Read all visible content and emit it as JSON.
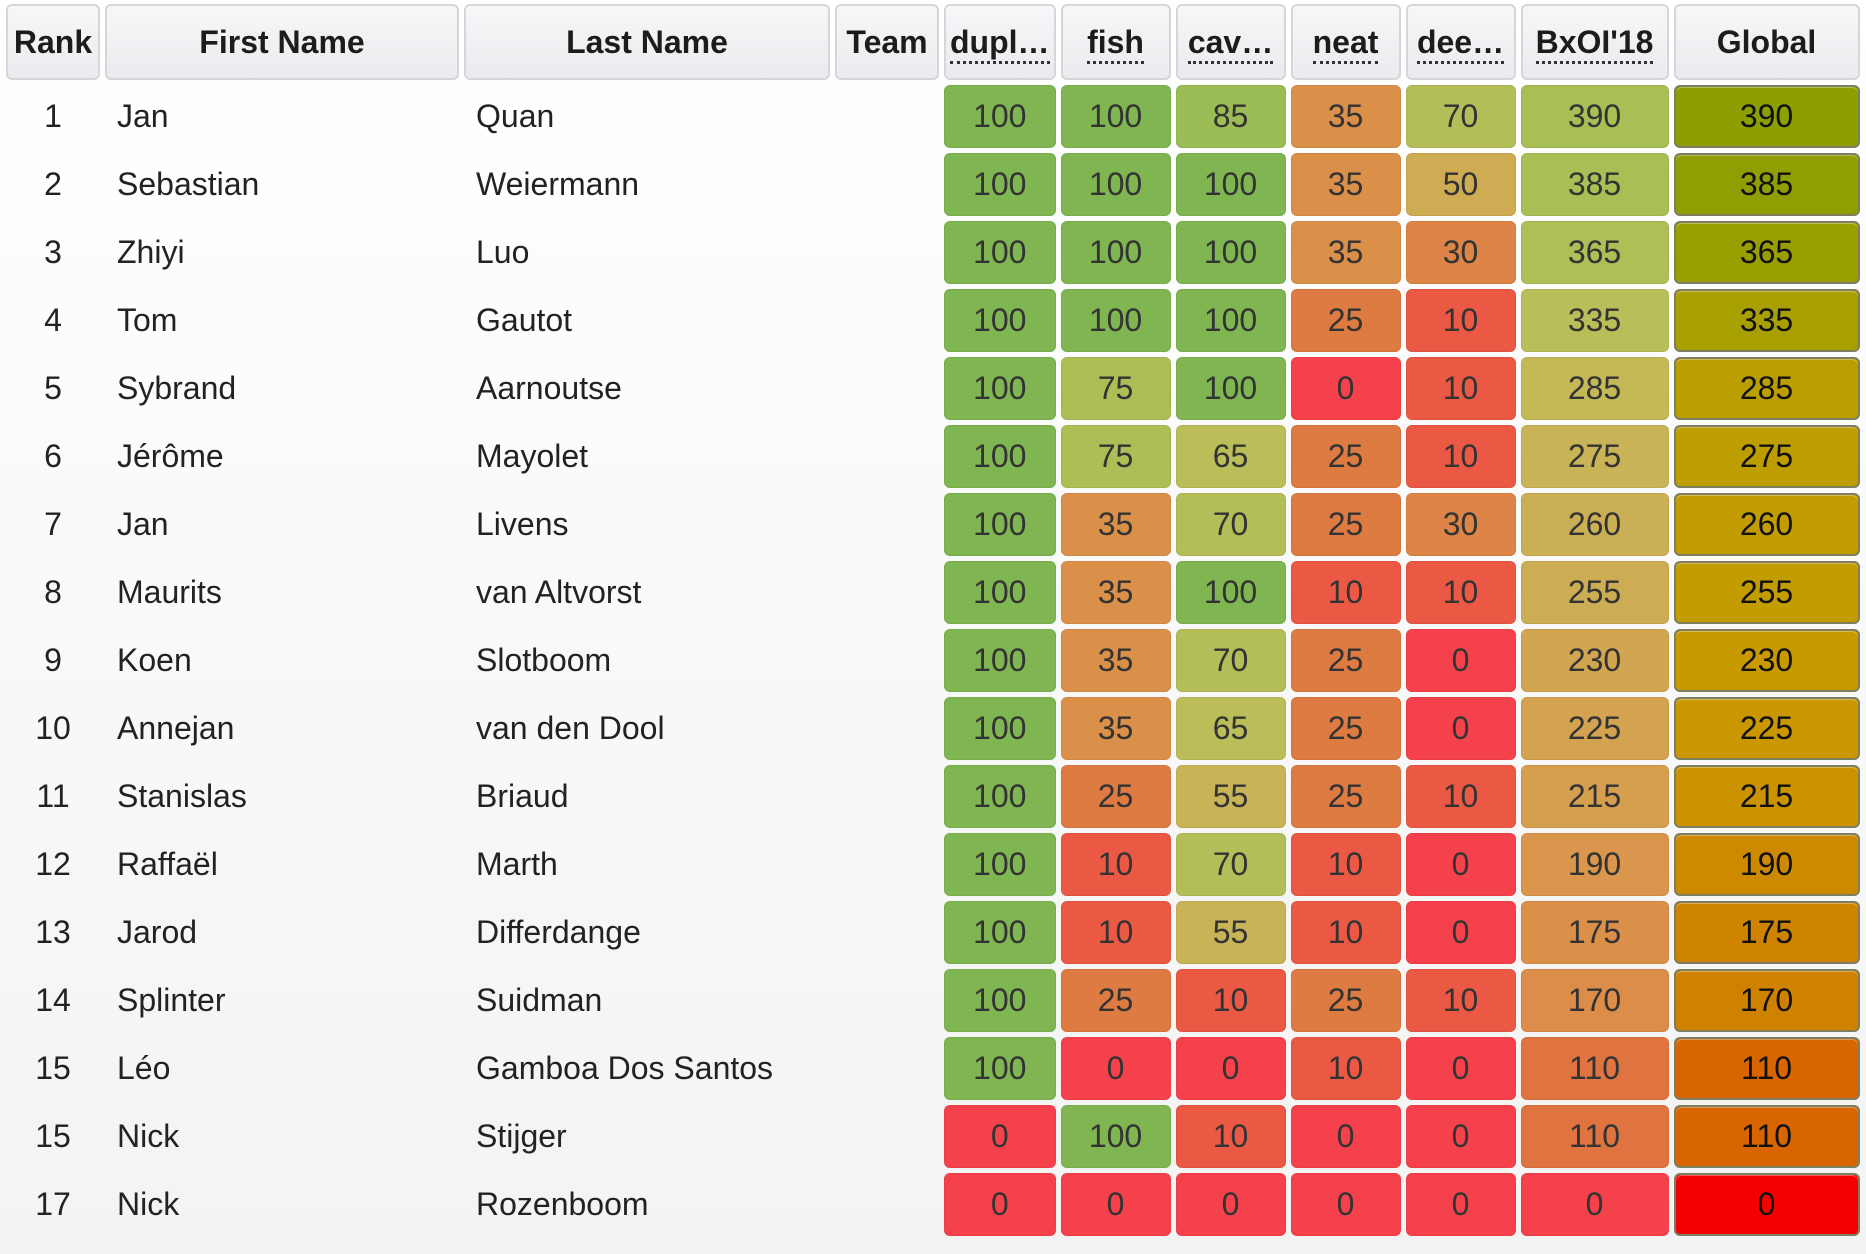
{
  "table": {
    "headers": [
      {
        "key": "rank",
        "label": "Rank",
        "abbr": false
      },
      {
        "key": "first",
        "label": "First Name",
        "abbr": false
      },
      {
        "key": "last",
        "label": "Last Name",
        "abbr": false
      },
      {
        "key": "team",
        "label": "Team",
        "abbr": false
      },
      {
        "key": "t1",
        "label": "dupl…",
        "abbr": true
      },
      {
        "key": "t2",
        "label": "fish",
        "abbr": true
      },
      {
        "key": "t3",
        "label": "cav…",
        "abbr": true
      },
      {
        "key": "t4",
        "label": "neat",
        "abbr": true
      },
      {
        "key": "t5",
        "label": "dee…",
        "abbr": true
      },
      {
        "key": "bxoi",
        "label": "BxOI'18",
        "abbr": true
      },
      {
        "key": "global",
        "label": "Global",
        "abbr": false
      }
    ],
    "rows": [
      {
        "rank": "1",
        "first": "Jan",
        "last": "Quan",
        "team": "",
        "scores": [
          "100",
          "100",
          "85",
          "35",
          "70"
        ],
        "bxoi": "390",
        "global": "390"
      },
      {
        "rank": "2",
        "first": "Sebastian",
        "last": "Weiermann",
        "team": "",
        "scores": [
          "100",
          "100",
          "100",
          "35",
          "50"
        ],
        "bxoi": "385",
        "global": "385"
      },
      {
        "rank": "3",
        "first": "Zhiyi",
        "last": "Luo",
        "team": "",
        "scores": [
          "100",
          "100",
          "100",
          "35",
          "30"
        ],
        "bxoi": "365",
        "global": "365"
      },
      {
        "rank": "4",
        "first": "Tom",
        "last": "Gautot",
        "team": "",
        "scores": [
          "100",
          "100",
          "100",
          "25",
          "10"
        ],
        "bxoi": "335",
        "global": "335"
      },
      {
        "rank": "5",
        "first": "Sybrand",
        "last": "Aarnoutse",
        "team": "",
        "scores": [
          "100",
          "75",
          "100",
          "0",
          "10"
        ],
        "bxoi": "285",
        "global": "285"
      },
      {
        "rank": "6",
        "first": "Jérôme",
        "last": "Mayolet",
        "team": "",
        "scores": [
          "100",
          "75",
          "65",
          "25",
          "10"
        ],
        "bxoi": "275",
        "global": "275"
      },
      {
        "rank": "7",
        "first": "Jan",
        "last": "Livens",
        "team": "",
        "scores": [
          "100",
          "35",
          "70",
          "25",
          "30"
        ],
        "bxoi": "260",
        "global": "260"
      },
      {
        "rank": "8",
        "first": "Maurits",
        "last": "van Altvorst",
        "team": "",
        "scores": [
          "100",
          "35",
          "100",
          "10",
          "10"
        ],
        "bxoi": "255",
        "global": "255"
      },
      {
        "rank": "9",
        "first": "Koen",
        "last": "Slotboom",
        "team": "",
        "scores": [
          "100",
          "35",
          "70",
          "25",
          "0"
        ],
        "bxoi": "230",
        "global": "230"
      },
      {
        "rank": "10",
        "first": "Annejan",
        "last": "van den Dool",
        "team": "",
        "scores": [
          "100",
          "35",
          "65",
          "25",
          "0"
        ],
        "bxoi": "225",
        "global": "225"
      },
      {
        "rank": "11",
        "first": "Stanislas",
        "last": "Briaud",
        "team": "",
        "scores": [
          "100",
          "25",
          "55",
          "25",
          "10"
        ],
        "bxoi": "215",
        "global": "215"
      },
      {
        "rank": "12",
        "first": "Raffaël",
        "last": "Marth",
        "team": "",
        "scores": [
          "100",
          "10",
          "70",
          "10",
          "0"
        ],
        "bxoi": "190",
        "global": "190"
      },
      {
        "rank": "13",
        "first": "Jarod",
        "last": "Differdange",
        "team": "",
        "scores": [
          "100",
          "10",
          "55",
          "10",
          "0"
        ],
        "bxoi": "175",
        "global": "175"
      },
      {
        "rank": "14",
        "first": "Splinter",
        "last": "Suidman",
        "team": "",
        "scores": [
          "100",
          "25",
          "10",
          "25",
          "10"
        ],
        "bxoi": "170",
        "global": "170"
      },
      {
        "rank": "15",
        "first": "Léo",
        "last": "Gamboa Dos Santos",
        "team": "",
        "scores": [
          "100",
          "0",
          "0",
          "10",
          "0"
        ],
        "bxoi": "110",
        "global": "110"
      },
      {
        "rank": "15",
        "first": "Nick",
        "last": "Stijger",
        "team": "",
        "scores": [
          "0",
          "100",
          "10",
          "0",
          "0"
        ],
        "bxoi": "110",
        "global": "110"
      },
      {
        "rank": "17",
        "first": "Nick",
        "last": "Rozenboom",
        "team": "",
        "scores": [
          "0",
          "0",
          "0",
          "0",
          "0"
        ],
        "bxoi": "0",
        "global": "0"
      }
    ]
  },
  "colors": {
    "score_scale": [
      "#f5414b",
      "#e0703f",
      "#d99a4d",
      "#c2bd59",
      "#a5bf56",
      "#7fb651"
    ],
    "global_scale": [
      "#f50000",
      "#dd5500",
      "#d07d00",
      "#c99a00",
      "#b4a000",
      "#8c9e00"
    ]
  }
}
